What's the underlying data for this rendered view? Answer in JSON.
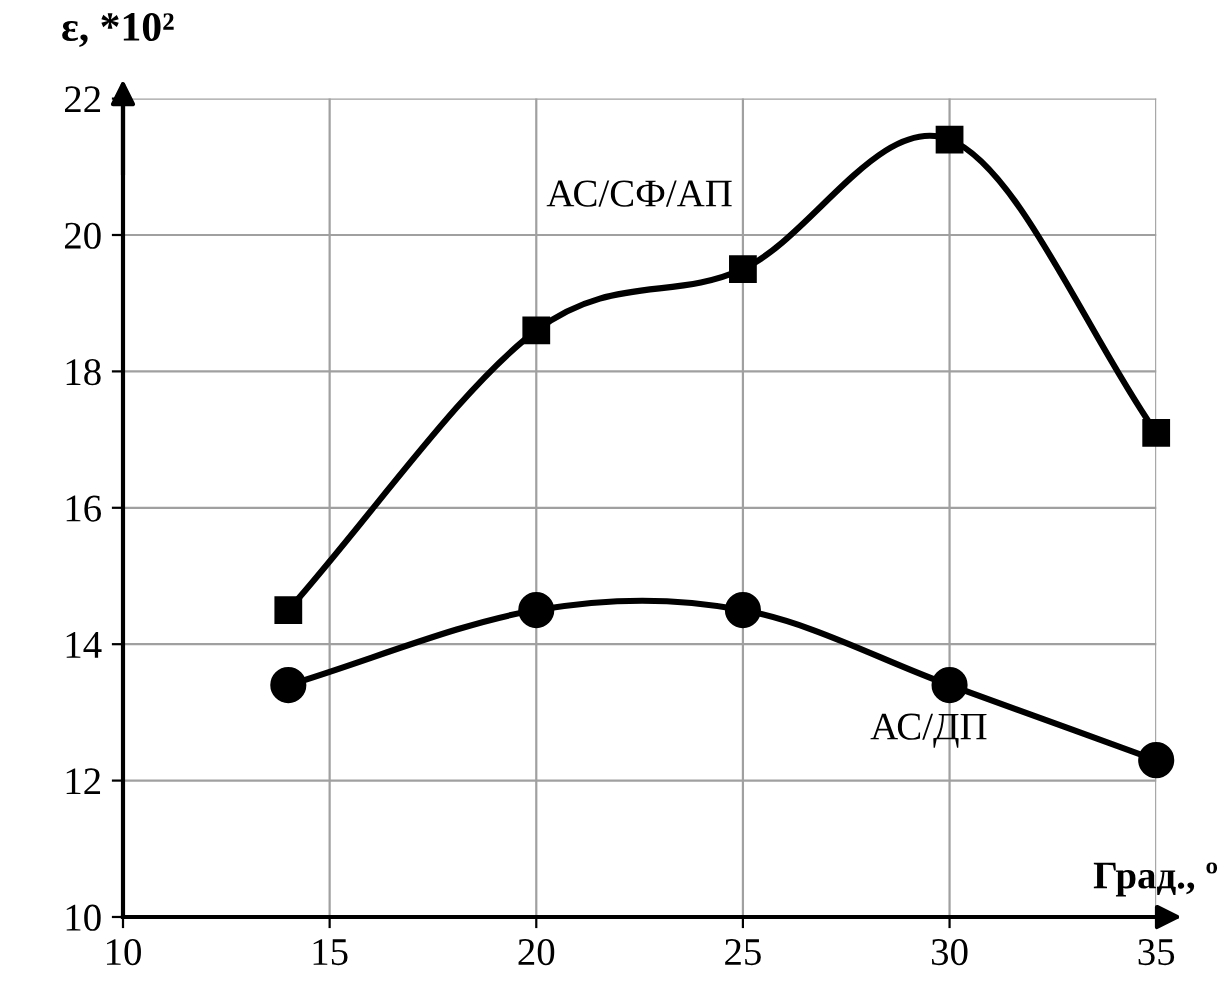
{
  "chart_data": {
    "type": "line",
    "xlabel": "Град., º",
    "ylabel": "ε, *10²",
    "x": [
      14,
      20,
      25,
      30,
      35
    ],
    "series": [
      {
        "name": "АС/СФ/АП",
        "color": "#000000",
        "marker": "square",
        "values": [
          14.5,
          18.6,
          19.5,
          21.4,
          17.1
        ]
      },
      {
        "name": "АС/ДП",
        "color": "#000000",
        "marker": "circle",
        "values": [
          13.4,
          14.5,
          14.5,
          13.4,
          12.3
        ]
      }
    ],
    "xlim": [
      10,
      35
    ],
    "xticks": [
      10,
      15,
      20,
      25,
      30,
      35
    ],
    "ylim": [
      10,
      22
    ],
    "yticks": [
      10,
      12,
      14,
      16,
      18,
      20,
      22
    ],
    "grid": true,
    "line_style": "solid"
  }
}
